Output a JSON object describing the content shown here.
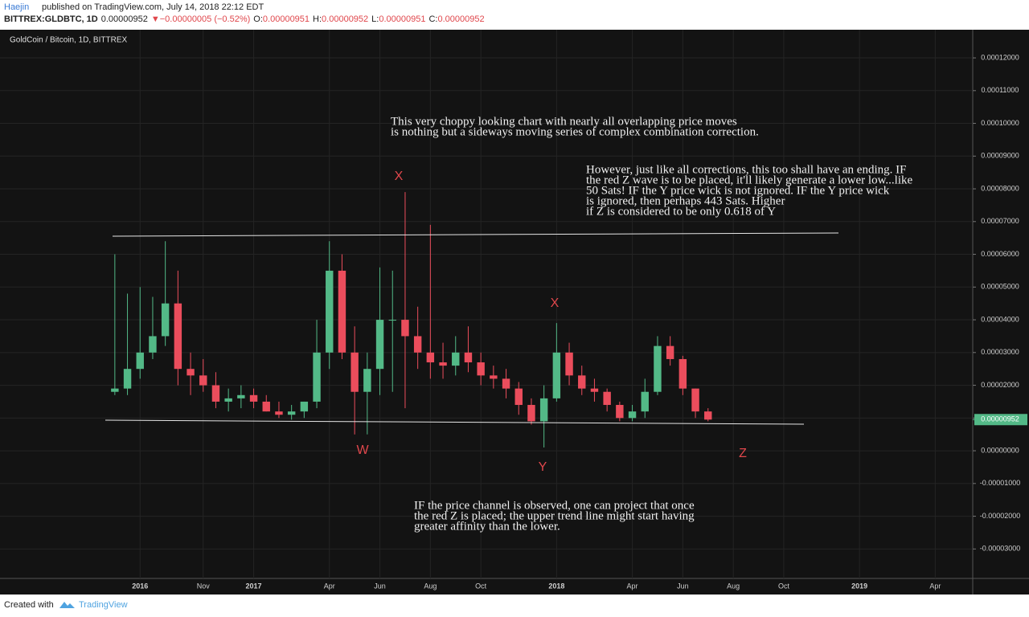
{
  "header": {
    "author": "Haejin",
    "published": "published on TradingView.com, July 14, 2018 22:12 EDT",
    "quote": [
      "BITTREX:GLDBTC, 1D",
      "0.00000952",
      "▼",
      "−0.00000005 (−0.52%)",
      "O:",
      "0.00000951",
      "H:",
      "0.00000952",
      "L:",
      "0.00000951",
      "C:",
      "0.00000952"
    ]
  },
  "footer": {
    "created": "Created with",
    "brand": "TradingView"
  },
  "chart_data": {
    "type": "candlestick",
    "title": "GoldCoin / Bitcoin, 1D, BITTREX",
    "up_color": "#53b987",
    "down_color": "#eb4d5c",
    "grid": true,
    "categories": [
      null,
      null,
      "2016",
      null,
      null,
      null,
      null,
      "Nov",
      null,
      null,
      null,
      "2017",
      null,
      null,
      null,
      null,
      null,
      "Apr",
      null,
      null,
      null,
      "Jun",
      null,
      null,
      null,
      "Aug",
      null,
      null,
      null,
      "Oct",
      null,
      null,
      null,
      null,
      null,
      "2018",
      null,
      null,
      null,
      null,
      null,
      "Apr",
      null,
      null,
      null,
      "Jun",
      null,
      null,
      null,
      "Aug",
      null,
      null,
      null,
      "Oct",
      null,
      null,
      null,
      null,
      null,
      "2019",
      null,
      null,
      null,
      null,
      null,
      "Apr",
      null,
      null
    ],
    "open": [
      1.8e-05,
      1.9e-05,
      2.5e-05,
      3e-05,
      3.5e-05,
      4.5e-05,
      2.5e-05,
      2.3e-05,
      2e-05,
      1.5e-05,
      1.6e-05,
      1.7e-05,
      1.5e-05,
      1.2e-05,
      1.1e-05,
      1.2e-05,
      1.5e-05,
      3e-05,
      5.5e-05,
      3e-05,
      1.8e-05,
      2.5e-05,
      4e-05,
      4e-05,
      3.5e-05,
      3e-05,
      2.7e-05,
      2.6e-05,
      3e-05,
      2.7e-05,
      2.3e-05,
      2.2e-05,
      1.9e-05,
      1.4e-05,
      9e-06,
      1.6e-05,
      3e-05,
      2.3e-05,
      1.9e-05,
      1.8e-05,
      1.4e-05,
      1e-05,
      1.2e-05,
      1.8e-05,
      3.2e-05,
      2.8e-05,
      1.9e-05,
      1.2e-05,
      null,
      null,
      null,
      null,
      null,
      null,
      null,
      null,
      null,
      null,
      null,
      null,
      null,
      null,
      null,
      null,
      null,
      null,
      null,
      null
    ],
    "high": [
      6e-05,
      4.8e-05,
      5e-05,
      4.7e-05,
      6.4e-05,
      5.5e-05,
      3e-05,
      2.8e-05,
      2.4e-05,
      1.9e-05,
      2e-05,
      1.9e-05,
      1.7e-05,
      1.5e-05,
      1.4e-05,
      1.5e-05,
      4e-05,
      6.4e-05,
      6e-05,
      3.8e-05,
      3e-05,
      5.6e-05,
      5.5e-05,
      7.9e-05,
      4.4e-05,
      6.9e-05,
      3.3e-05,
      3.5e-05,
      3.8e-05,
      3e-05,
      2.6e-05,
      2.5e-05,
      2.1e-05,
      1.6e-05,
      2e-05,
      3.9e-05,
      3.3e-05,
      2.6e-05,
      2.2e-05,
      1.9e-05,
      1.5e-05,
      1.4e-05,
      2.2e-05,
      3.5e-05,
      3.5e-05,
      2.9e-05,
      1.9e-05,
      1.3e-05,
      null,
      null,
      null,
      null,
      null,
      null,
      null,
      null,
      null,
      null,
      null,
      null,
      null,
      null,
      null,
      null,
      null,
      null,
      null,
      null
    ],
    "low": [
      1.7e-05,
      1.7e-05,
      2.2e-05,
      2.8e-05,
      3.2e-05,
      2e-05,
      1.7e-05,
      1.8e-05,
      1.3e-05,
      1.2e-05,
      1.3e-05,
      1.3e-05,
      1.2e-05,
      1e-05,
      9.5e-06,
      1e-05,
      1.3e-05,
      2.5e-05,
      2.8e-05,
      5e-06,
      5e-06,
      1.7e-05,
      1.8e-05,
      1.3e-05,
      2.5e-05,
      2.2e-05,
      2.2e-05,
      2.3e-05,
      2.4e-05,
      2e-05,
      1.9e-05,
      1.6e-05,
      1.1e-05,
      8e-06,
      1e-06,
      1.5e-05,
      2e-05,
      1.7e-05,
      1.5e-05,
      1.2e-05,
      9e-06,
      9e-06,
      1e-05,
      1.7e-05,
      2.6e-05,
      1.7e-05,
      1e-05,
      9e-06,
      null,
      null,
      null,
      null,
      null,
      null,
      null,
      null,
      null,
      null,
      null,
      null,
      null,
      null,
      null,
      null,
      null,
      null,
      null,
      null
    ],
    "close": [
      1.9e-05,
      2.5e-05,
      3e-05,
      3.5e-05,
      4.5e-05,
      2.5e-05,
      2.3e-05,
      2e-05,
      1.5e-05,
      1.6e-05,
      1.7e-05,
      1.5e-05,
      1.2e-05,
      1.1e-05,
      1.2e-05,
      1.5e-05,
      3e-05,
      5.5e-05,
      3e-05,
      1.8e-05,
      2.5e-05,
      4e-05,
      4e-05,
      3.5e-05,
      3e-05,
      2.7e-05,
      2.6e-05,
      3e-05,
      2.7e-05,
      2.3e-05,
      2.2e-05,
      1.9e-05,
      1.4e-05,
      9e-06,
      1.6e-05,
      3e-05,
      2.3e-05,
      1.9e-05,
      1.8e-05,
      1.4e-05,
      1e-05,
      1.2e-05,
      1.8e-05,
      3.2e-05,
      2.8e-05,
      1.9e-05,
      1.2e-05,
      9.52e-06,
      null,
      null,
      null,
      null,
      null,
      null,
      null,
      null,
      null,
      null,
      null,
      null,
      null,
      null,
      null,
      null,
      null,
      null,
      null,
      null
    ],
    "ylim": [
      -3.9e-05,
      0.0001286
    ],
    "yticks": [
      {
        "value": -3e-05,
        "label": "-0.00003000"
      },
      {
        "value": -2e-05,
        "label": "-0.00002000"
      },
      {
        "value": -1e-05,
        "label": "-0.00001000"
      },
      {
        "value": 0,
        "label": "0.00000000"
      },
      {
        "value": 1e-05,
        "label": "0.00001000"
      },
      {
        "value": 2e-05,
        "label": "0.00002000"
      },
      {
        "value": 3e-05,
        "label": "0.00003000"
      },
      {
        "value": 4e-05,
        "label": "0.00004000"
      },
      {
        "value": 5e-05,
        "label": "0.00005000"
      },
      {
        "value": 6e-05,
        "label": "0.00006000"
      },
      {
        "value": 7e-05,
        "label": "0.00007000"
      },
      {
        "value": 8e-05,
        "label": "0.00008000"
      },
      {
        "value": 9e-05,
        "label": "0.00009000"
      },
      {
        "value": 0.0001,
        "label": "0.00010000"
      },
      {
        "value": 0.00011,
        "label": "0.00011000"
      },
      {
        "value": 0.00012,
        "label": "0.00012000"
      }
    ],
    "last_price": {
      "value": 9.52e-06,
      "label": "0.00000952"
    },
    "annotations": {
      "notes": [
        [
          "This very choppy looking chart with nearly all overlapping price moves",
          "is nothing but a sideways moving series of complex combination correction."
        ],
        [
          "However, just like all corrections, this too shall have an ending. IF",
          "the red Z wave is to be placed, it'll likely generate a lower low...like",
          "50 Sats! IF the Y price wick is not ignored. IF the Y price wick",
          "is ignored, then perhaps 443 Sats. Higher",
          "if Z is considered to be only 0.618 of Y"
        ],
        [
          "IF the price channel is observed, one can project that once",
          "the red Z is placed; the upper trend line might start having",
          "greater affinity than the lower."
        ]
      ],
      "waves": [
        "X",
        "X",
        "W",
        "Y",
        "Z"
      ]
    }
  }
}
